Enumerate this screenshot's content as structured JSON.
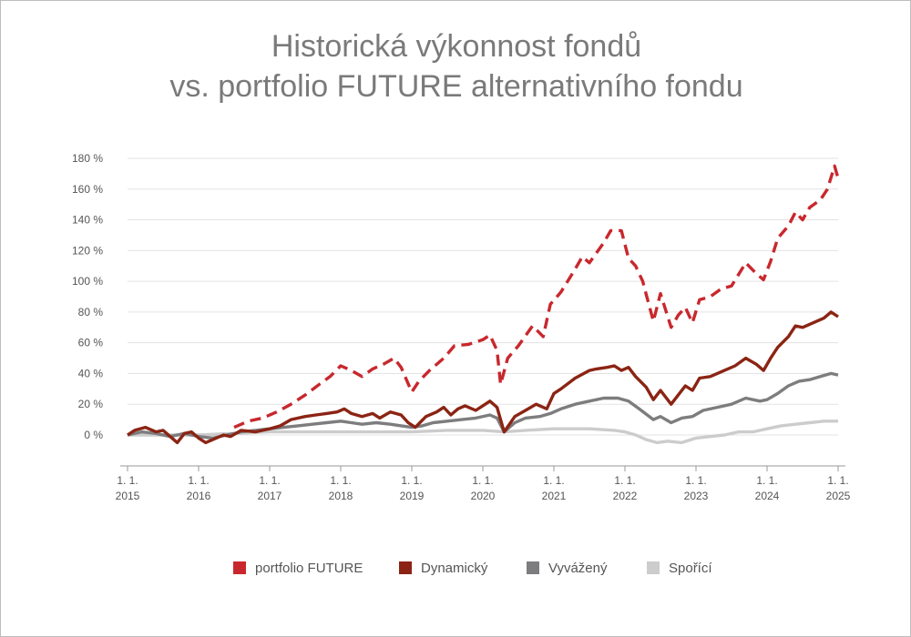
{
  "chart_data": {
    "type": "line",
    "title_line1": "Historická výkonnost fondů",
    "title_line2": "vs. portfolio FUTURE alternativního fondu",
    "xlabel": "",
    "ylabel": "",
    "xlim": [
      2015,
      2025
    ],
    "ylim": [
      -20,
      180
    ],
    "y_ticks": [
      0,
      20,
      40,
      60,
      80,
      100,
      120,
      140,
      160,
      180
    ],
    "y_tick_suffix": " %",
    "x_ticks": [
      {
        "top": "1. 1.",
        "bottom": "2015",
        "x": 2015
      },
      {
        "top": "1. 1.",
        "bottom": "2016",
        "x": 2016
      },
      {
        "top": "1. 1.",
        "bottom": "2017",
        "x": 2017
      },
      {
        "top": "1. 1.",
        "bottom": "2018",
        "x": 2018
      },
      {
        "top": "1. 1.",
        "bottom": "2019",
        "x": 2019
      },
      {
        "top": "1. 1.",
        "bottom": "2020",
        "x": 2020
      },
      {
        "top": "1. 1.",
        "bottom": "2021",
        "x": 2021
      },
      {
        "top": "1. 1.",
        "bottom": "2022",
        "x": 2022
      },
      {
        "top": "1. 1.",
        "bottom": "2023",
        "x": 2023
      },
      {
        "top": "1. 1.",
        "bottom": "2024",
        "x": 2024
      },
      {
        "top": "1. 1.",
        "bottom": "2025",
        "x": 2025
      }
    ],
    "gridlines": true,
    "legend_position": "bottom",
    "series": [
      {
        "name": "portfolio FUTURE",
        "color": "#c8282d",
        "dashed": true,
        "points": [
          [
            2016.5,
            5
          ],
          [
            2016.7,
            9
          ],
          [
            2016.9,
            11
          ],
          [
            2017.1,
            15
          ],
          [
            2017.3,
            20
          ],
          [
            2017.5,
            26
          ],
          [
            2017.7,
            33
          ],
          [
            2017.85,
            38
          ],
          [
            2018.0,
            45
          ],
          [
            2018.15,
            42
          ],
          [
            2018.3,
            38
          ],
          [
            2018.45,
            43
          ],
          [
            2018.6,
            46
          ],
          [
            2018.75,
            50
          ],
          [
            2018.85,
            44
          ],
          [
            2019.0,
            28
          ],
          [
            2019.1,
            35
          ],
          [
            2019.25,
            42
          ],
          [
            2019.45,
            50
          ],
          [
            2019.6,
            58
          ],
          [
            2019.8,
            59
          ],
          [
            2020.0,
            62
          ],
          [
            2020.1,
            65
          ],
          [
            2020.2,
            55
          ],
          [
            2020.25,
            33
          ],
          [
            2020.35,
            50
          ],
          [
            2020.5,
            58
          ],
          [
            2020.7,
            71
          ],
          [
            2020.85,
            64
          ],
          [
            2020.95,
            85
          ],
          [
            2021.1,
            93
          ],
          [
            2021.3,
            108
          ],
          [
            2021.4,
            116
          ],
          [
            2021.5,
            112
          ],
          [
            2021.7,
            125
          ],
          [
            2021.8,
            133
          ],
          [
            2021.95,
            133
          ],
          [
            2022.05,
            115
          ],
          [
            2022.15,
            110
          ],
          [
            2022.25,
            100
          ],
          [
            2022.4,
            74
          ],
          [
            2022.5,
            92
          ],
          [
            2022.65,
            70
          ],
          [
            2022.75,
            78
          ],
          [
            2022.85,
            83
          ],
          [
            2022.95,
            73
          ],
          [
            2023.05,
            88
          ],
          [
            2023.2,
            90
          ],
          [
            2023.35,
            95
          ],
          [
            2023.5,
            97
          ],
          [
            2023.7,
            112
          ],
          [
            2023.85,
            105
          ],
          [
            2023.95,
            101
          ],
          [
            2024.05,
            113
          ],
          [
            2024.15,
            128
          ],
          [
            2024.3,
            136
          ],
          [
            2024.4,
            145
          ],
          [
            2024.5,
            140
          ],
          [
            2024.6,
            148
          ],
          [
            2024.75,
            153
          ],
          [
            2024.85,
            160
          ],
          [
            2024.95,
            175
          ],
          [
            2025.0,
            167
          ]
        ]
      },
      {
        "name": "Dynamický",
        "color": "#8b2414",
        "dashed": false,
        "points": [
          [
            2015.0,
            0
          ],
          [
            2015.1,
            3
          ],
          [
            2015.25,
            5
          ],
          [
            2015.4,
            2
          ],
          [
            2015.5,
            3
          ],
          [
            2015.6,
            -1
          ],
          [
            2015.7,
            -5
          ],
          [
            2015.8,
            1
          ],
          [
            2015.9,
            2
          ],
          [
            2016.0,
            -2
          ],
          [
            2016.1,
            -5
          ],
          [
            2016.2,
            -3
          ],
          [
            2016.35,
            0
          ],
          [
            2016.45,
            -1
          ],
          [
            2016.6,
            3
          ],
          [
            2016.8,
            2
          ],
          [
            2017.0,
            4
          ],
          [
            2017.15,
            6
          ],
          [
            2017.3,
            10
          ],
          [
            2017.5,
            12
          ],
          [
            2017.65,
            13
          ],
          [
            2017.8,
            14
          ],
          [
            2017.95,
            15
          ],
          [
            2018.05,
            17
          ],
          [
            2018.15,
            14
          ],
          [
            2018.3,
            12
          ],
          [
            2018.45,
            14
          ],
          [
            2018.55,
            11
          ],
          [
            2018.7,
            15
          ],
          [
            2018.85,
            13
          ],
          [
            2018.95,
            8
          ],
          [
            2019.05,
            5
          ],
          [
            2019.2,
            12
          ],
          [
            2019.35,
            15
          ],
          [
            2019.45,
            18
          ],
          [
            2019.55,
            13
          ],
          [
            2019.65,
            17
          ],
          [
            2019.75,
            19
          ],
          [
            2019.9,
            16
          ],
          [
            2020.0,
            19
          ],
          [
            2020.1,
            22
          ],
          [
            2020.2,
            18
          ],
          [
            2020.3,
            2
          ],
          [
            2020.45,
            12
          ],
          [
            2020.6,
            16
          ],
          [
            2020.75,
            20
          ],
          [
            2020.9,
            17
          ],
          [
            2021.0,
            27
          ],
          [
            2021.1,
            30
          ],
          [
            2021.3,
            37
          ],
          [
            2021.5,
            42
          ],
          [
            2021.6,
            43
          ],
          [
            2021.75,
            44
          ],
          [
            2021.85,
            45
          ],
          [
            2021.95,
            42
          ],
          [
            2022.05,
            44
          ],
          [
            2022.15,
            38
          ],
          [
            2022.3,
            31
          ],
          [
            2022.4,
            23
          ],
          [
            2022.5,
            29
          ],
          [
            2022.65,
            20
          ],
          [
            2022.75,
            26
          ],
          [
            2022.85,
            32
          ],
          [
            2022.95,
            29
          ],
          [
            2023.05,
            37
          ],
          [
            2023.2,
            38
          ],
          [
            2023.4,
            42
          ],
          [
            2023.55,
            45
          ],
          [
            2023.7,
            50
          ],
          [
            2023.85,
            46
          ],
          [
            2023.95,
            42
          ],
          [
            2024.05,
            50
          ],
          [
            2024.15,
            57
          ],
          [
            2024.3,
            64
          ],
          [
            2024.4,
            71
          ],
          [
            2024.5,
            70
          ],
          [
            2024.65,
            73
          ],
          [
            2024.8,
            76
          ],
          [
            2024.9,
            80
          ],
          [
            2025.0,
            77
          ]
        ]
      },
      {
        "name": "Vyvážený",
        "color": "#7d7d7f",
        "dashed": false,
        "points": [
          [
            2015.0,
            0
          ],
          [
            2015.2,
            2
          ],
          [
            2015.4,
            1
          ],
          [
            2015.6,
            -1
          ],
          [
            2015.8,
            1
          ],
          [
            2016.0,
            -1
          ],
          [
            2016.2,
            -2
          ],
          [
            2016.4,
            0
          ],
          [
            2016.6,
            2
          ],
          [
            2016.8,
            3
          ],
          [
            2017.0,
            4
          ],
          [
            2017.2,
            5
          ],
          [
            2017.4,
            6
          ],
          [
            2017.6,
            7
          ],
          [
            2017.8,
            8
          ],
          [
            2018.0,
            9
          ],
          [
            2018.15,
            8
          ],
          [
            2018.3,
            7
          ],
          [
            2018.5,
            8
          ],
          [
            2018.7,
            7
          ],
          [
            2018.85,
            6
          ],
          [
            2019.0,
            5
          ],
          [
            2019.15,
            6
          ],
          [
            2019.3,
            8
          ],
          [
            2019.5,
            9
          ],
          [
            2019.7,
            10
          ],
          [
            2019.9,
            11
          ],
          [
            2020.1,
            13
          ],
          [
            2020.2,
            11
          ],
          [
            2020.3,
            2
          ],
          [
            2020.45,
            8
          ],
          [
            2020.6,
            11
          ],
          [
            2020.8,
            12
          ],
          [
            2020.95,
            14
          ],
          [
            2021.1,
            17
          ],
          [
            2021.3,
            20
          ],
          [
            2021.5,
            22
          ],
          [
            2021.7,
            24
          ],
          [
            2021.9,
            24
          ],
          [
            2022.05,
            22
          ],
          [
            2022.2,
            17
          ],
          [
            2022.4,
            10
          ],
          [
            2022.5,
            12
          ],
          [
            2022.65,
            8
          ],
          [
            2022.8,
            11
          ],
          [
            2022.95,
            12
          ],
          [
            2023.1,
            16
          ],
          [
            2023.3,
            18
          ],
          [
            2023.5,
            20
          ],
          [
            2023.7,
            24
          ],
          [
            2023.9,
            22
          ],
          [
            2024.0,
            23
          ],
          [
            2024.15,
            27
          ],
          [
            2024.3,
            32
          ],
          [
            2024.45,
            35
          ],
          [
            2024.6,
            36
          ],
          [
            2024.75,
            38
          ],
          [
            2024.9,
            40
          ],
          [
            2025.0,
            39
          ]
        ]
      },
      {
        "name": "Spořící",
        "color": "#cccccc",
        "dashed": false,
        "points": [
          [
            2015.0,
            0
          ],
          [
            2015.5,
            0
          ],
          [
            2016.0,
            0
          ],
          [
            2016.5,
            1
          ],
          [
            2017.0,
            2
          ],
          [
            2017.5,
            2
          ],
          [
            2018.0,
            2
          ],
          [
            2018.5,
            2
          ],
          [
            2019.0,
            2
          ],
          [
            2019.5,
            3
          ],
          [
            2020.0,
            3
          ],
          [
            2020.3,
            2
          ],
          [
            2020.6,
            3
          ],
          [
            2021.0,
            4
          ],
          [
            2021.5,
            4
          ],
          [
            2021.85,
            3
          ],
          [
            2022.0,
            2
          ],
          [
            2022.15,
            0
          ],
          [
            2022.3,
            -3
          ],
          [
            2022.45,
            -5
          ],
          [
            2022.6,
            -4
          ],
          [
            2022.8,
            -5
          ],
          [
            2023.0,
            -2
          ],
          [
            2023.2,
            -1
          ],
          [
            2023.4,
            0
          ],
          [
            2023.6,
            2
          ],
          [
            2023.8,
            2
          ],
          [
            2024.0,
            4
          ],
          [
            2024.2,
            6
          ],
          [
            2024.4,
            7
          ],
          [
            2024.6,
            8
          ],
          [
            2024.8,
            9
          ],
          [
            2025.0,
            9
          ]
        ]
      }
    ]
  }
}
